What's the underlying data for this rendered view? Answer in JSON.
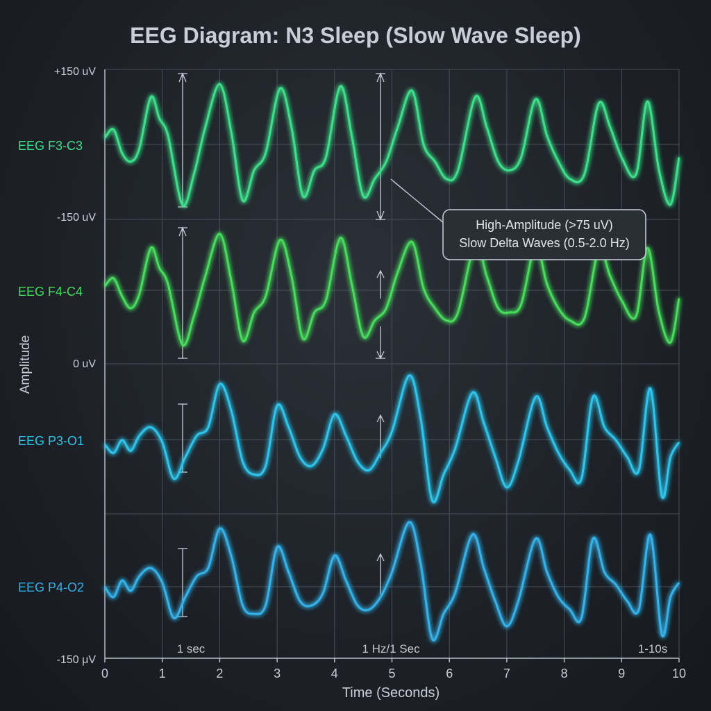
{
  "chart_data": {
    "type": "line",
    "title": "EEG Diagram: N3 Sleep (Slow Wave Sleep)",
    "xlabel": "Time (Seconds)",
    "ylabel": "Amplitude",
    "xlim": [
      0,
      10
    ],
    "x_ticks": [
      "0",
      "1",
      "2",
      "3",
      "4",
      "5",
      "6",
      "7",
      "8",
      "9",
      "10"
    ],
    "y_tick_labels": [
      "+150 uV",
      "-150 uV",
      "0 uV",
      "-150 μV"
    ],
    "grid": true,
    "series": [
      {
        "name": "EEG F3-C3",
        "color": "#3ee08a",
        "x": [
          0,
          0.15,
          0.3,
          0.45,
          0.6,
          0.8,
          0.95,
          1.1,
          1.35,
          1.55,
          1.75,
          2.0,
          2.2,
          2.4,
          2.6,
          2.8,
          3.05,
          3.25,
          3.45,
          3.65,
          3.85,
          4.1,
          4.3,
          4.5,
          4.7,
          4.9,
          5.1,
          5.35,
          5.55,
          5.75,
          5.95,
          6.15,
          6.45,
          6.65,
          6.85,
          7.05,
          7.25,
          7.5,
          7.7,
          7.9,
          8.1,
          8.35,
          8.6,
          8.8,
          9.0,
          9.25,
          9.45,
          9.65,
          9.85,
          10.0
        ],
        "values": [
          15,
          35,
          -20,
          -40,
          -10,
          110,
          60,
          20,
          -140,
          -70,
          40,
          140,
          30,
          -130,
          -60,
          -20,
          130,
          40,
          -120,
          -60,
          -30,
          135,
          20,
          -120,
          -80,
          -40,
          40,
          125,
          0,
          -40,
          -80,
          -60,
          110,
          40,
          -40,
          -60,
          -30,
          105,
          20,
          -40,
          -80,
          -70,
          95,
          40,
          -30,
          -70,
          100,
          -60,
          -140,
          -30
        ]
      },
      {
        "name": "EEG F4-C4",
        "color": "#46dc5c",
        "x": [
          0,
          0.15,
          0.3,
          0.45,
          0.6,
          0.8,
          0.95,
          1.1,
          1.35,
          1.55,
          1.75,
          2.0,
          2.2,
          2.4,
          2.6,
          2.8,
          3.05,
          3.25,
          3.45,
          3.65,
          3.85,
          4.1,
          4.3,
          4.5,
          4.7,
          4.9,
          5.1,
          5.35,
          5.55,
          5.75,
          5.95,
          6.15,
          6.45,
          6.65,
          6.85,
          7.05,
          7.25,
          7.5,
          7.7,
          7.9,
          8.1,
          8.35,
          8.6,
          8.8,
          9.0,
          9.25,
          9.45,
          9.65,
          9.85,
          10.0
        ],
        "values": [
          10,
          30,
          -15,
          -45,
          -10,
          105,
          55,
          15,
          -135,
          -65,
          35,
          140,
          25,
          -125,
          -55,
          -15,
          125,
          35,
          -120,
          -55,
          -25,
          130,
          15,
          -115,
          -75,
          -45,
          45,
          120,
          5,
          -45,
          -75,
          -55,
          115,
          35,
          -45,
          -55,
          -35,
          110,
          15,
          -45,
          -75,
          -70,
          100,
          35,
          -25,
          -65,
          105,
          -55,
          -130,
          -20
        ]
      },
      {
        "name": "EEG P3-O1",
        "color": "#2ec4ec",
        "x": [
          0,
          0.15,
          0.3,
          0.45,
          0.6,
          0.8,
          1.0,
          1.2,
          1.4,
          1.6,
          1.8,
          2.0,
          2.2,
          2.4,
          2.6,
          2.8,
          3.0,
          3.2,
          3.4,
          3.6,
          3.8,
          4.0,
          4.2,
          4.4,
          4.6,
          4.8,
          5.0,
          5.3,
          5.5,
          5.7,
          5.9,
          6.1,
          6.4,
          6.6,
          6.8,
          7.0,
          7.2,
          7.5,
          7.7,
          7.9,
          8.1,
          8.3,
          8.5,
          8.7,
          8.9,
          9.1,
          9.3,
          9.5,
          9.7,
          9.85,
          10.0
        ],
        "values": [
          0,
          -20,
          10,
          -15,
          20,
          40,
          5,
          -80,
          -30,
          20,
          40,
          140,
          80,
          -40,
          -70,
          -50,
          90,
          40,
          -30,
          -50,
          -10,
          70,
          20,
          -40,
          -60,
          -20,
          30,
          160,
          60,
          -130,
          -70,
          -10,
          120,
          50,
          -30,
          -100,
          -40,
          110,
          40,
          -20,
          -60,
          -80,
          110,
          40,
          10,
          -30,
          -60,
          130,
          -120,
          -30,
          5
        ]
      },
      {
        "name": "EEG P4-O2",
        "color": "#34b2ea",
        "x": [
          0,
          0.15,
          0.3,
          0.45,
          0.6,
          0.8,
          1.0,
          1.2,
          1.4,
          1.6,
          1.8,
          2.0,
          2.2,
          2.4,
          2.6,
          2.8,
          3.0,
          3.2,
          3.4,
          3.6,
          3.8,
          4.0,
          4.2,
          4.4,
          4.6,
          4.8,
          5.0,
          5.3,
          5.5,
          5.7,
          5.9,
          6.1,
          6.4,
          6.6,
          6.8,
          7.0,
          7.2,
          7.5,
          7.7,
          7.9,
          8.1,
          8.3,
          8.5,
          8.7,
          8.9,
          9.1,
          9.3,
          9.5,
          9.7,
          9.85,
          10.0
        ],
        "values": [
          0,
          -25,
          15,
          -10,
          25,
          45,
          10,
          -75,
          -25,
          25,
          45,
          140,
          75,
          -45,
          -65,
          -45,
          95,
          35,
          -35,
          -45,
          -15,
          75,
          15,
          -45,
          -55,
          -25,
          35,
          155,
          55,
          -125,
          -65,
          -15,
          125,
          45,
          -35,
          -95,
          -35,
          115,
          35,
          -25,
          -55,
          -75,
          115,
          35,
          5,
          -35,
          -55,
          125,
          -115,
          -25,
          10
        ]
      }
    ],
    "annotations": {
      "callout": [
        "High-Amplitude (>75 uV)",
        "Slow Delta Waves (0.5-2.0 Hz)"
      ],
      "bottom_labels": [
        "1 sec",
        "1 Hz/1 Sec",
        "1-10s"
      ]
    }
  }
}
